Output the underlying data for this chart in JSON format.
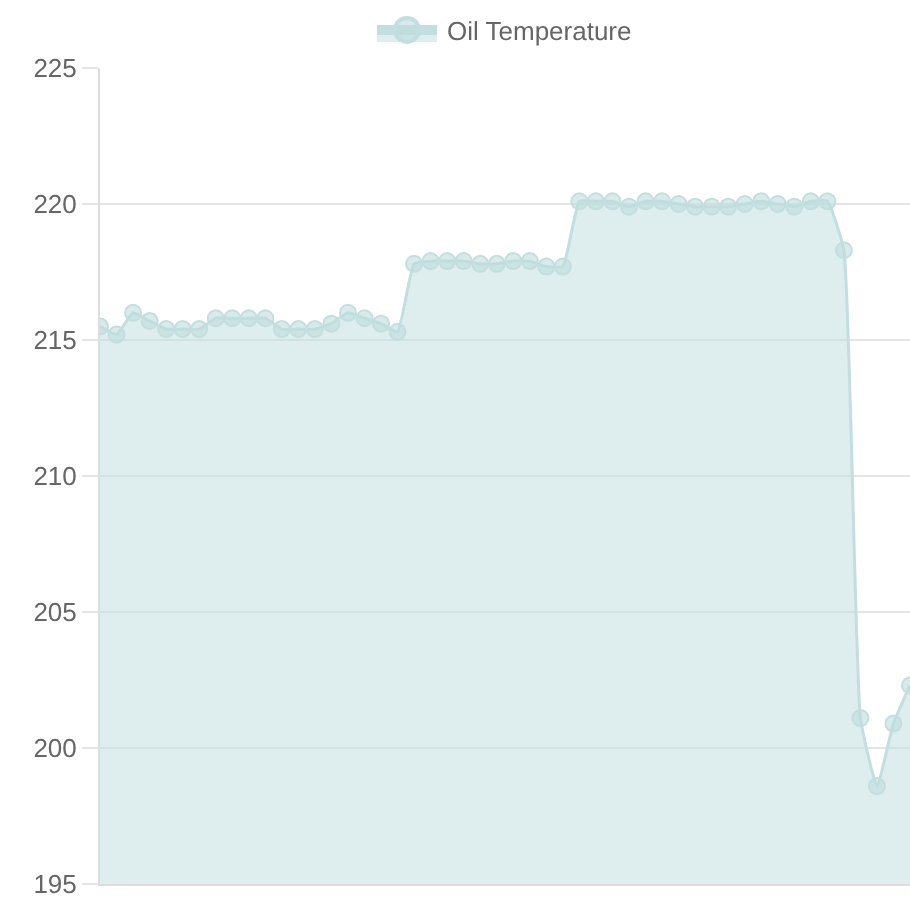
{
  "chart_data": {
    "type": "area",
    "categories": [
      null,
      null,
      null,
      null,
      null,
      null,
      null,
      null,
      null,
      null,
      null,
      null,
      null,
      null,
      null,
      null,
      null,
      null,
      null,
      null,
      null,
      null,
      null,
      null,
      null,
      null,
      null,
      null,
      null,
      null,
      null,
      null,
      null,
      null,
      null,
      null,
      null,
      null,
      null,
      null,
      null,
      null,
      null,
      null,
      null,
      null,
      null,
      null,
      null,
      null
    ],
    "series": [
      {
        "name": "Oil Temperature",
        "color": "#c3dedf",
        "values": [
          215.5,
          215.2,
          216.0,
          215.7,
          215.4,
          215.4,
          215.4,
          215.8,
          215.8,
          215.8,
          215.8,
          215.4,
          215.4,
          215.4,
          215.6,
          216.0,
          215.8,
          215.6,
          215.3,
          217.8,
          217.9,
          217.9,
          217.9,
          217.8,
          217.8,
          217.9,
          217.9,
          217.7,
          217.7,
          220.1,
          220.1,
          220.1,
          219.9,
          220.1,
          220.1,
          220.0,
          219.9,
          219.9,
          219.9,
          220.0,
          220.1,
          220.0,
          219.9,
          220.1,
          220.1,
          218.3,
          201.1,
          198.6,
          200.9,
          202.3
        ]
      }
    ],
    "ylim": [
      195,
      225
    ],
    "yticks": [
      195,
      200,
      205,
      210,
      215,
      220,
      225
    ],
    "grid": "y",
    "legend": "top",
    "marker": "circle",
    "line_style": "solid"
  }
}
